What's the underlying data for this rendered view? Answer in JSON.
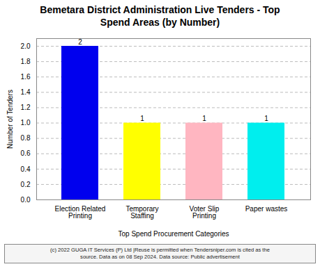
{
  "chart_data": {
    "type": "bar",
    "title": "Bemetara District Administration Live Tenders - Top\nSpend Areas (by Number)",
    "categories": [
      "Election Related\nPrinting",
      "Temporary\nStaffing",
      "Voter Slip\nPrinting",
      "Paper wastes"
    ],
    "values": [
      2,
      1,
      1,
      1
    ],
    "colors": [
      "#0000EE",
      "#FFFF00",
      "#FFB6C1",
      "#00EEEE"
    ],
    "xlabel": "Top Spend Procurement Categories",
    "ylabel": "Number of Tenders",
    "ylim": [
      0,
      2.1
    ],
    "yticks": [
      {
        "value": 0.0,
        "label": "0.0"
      },
      0.2,
      0.4,
      0.6,
      0.8,
      {
        "value": 1.0,
        "label": "1.0"
      },
      1.2,
      1.4,
      1.6,
      1.8,
      {
        "value": 2.0,
        "label": "2.0"
      }
    ],
    "grid": true,
    "data_labels": true,
    "annotations": [
      "(c) 2022 GUGA IT Services (P) Ltd |Reuse is permitted when Tendersniper.com is cited as the\nsource. Data as on 08 Sep 2024. Data source: Public advertisement"
    ]
  }
}
